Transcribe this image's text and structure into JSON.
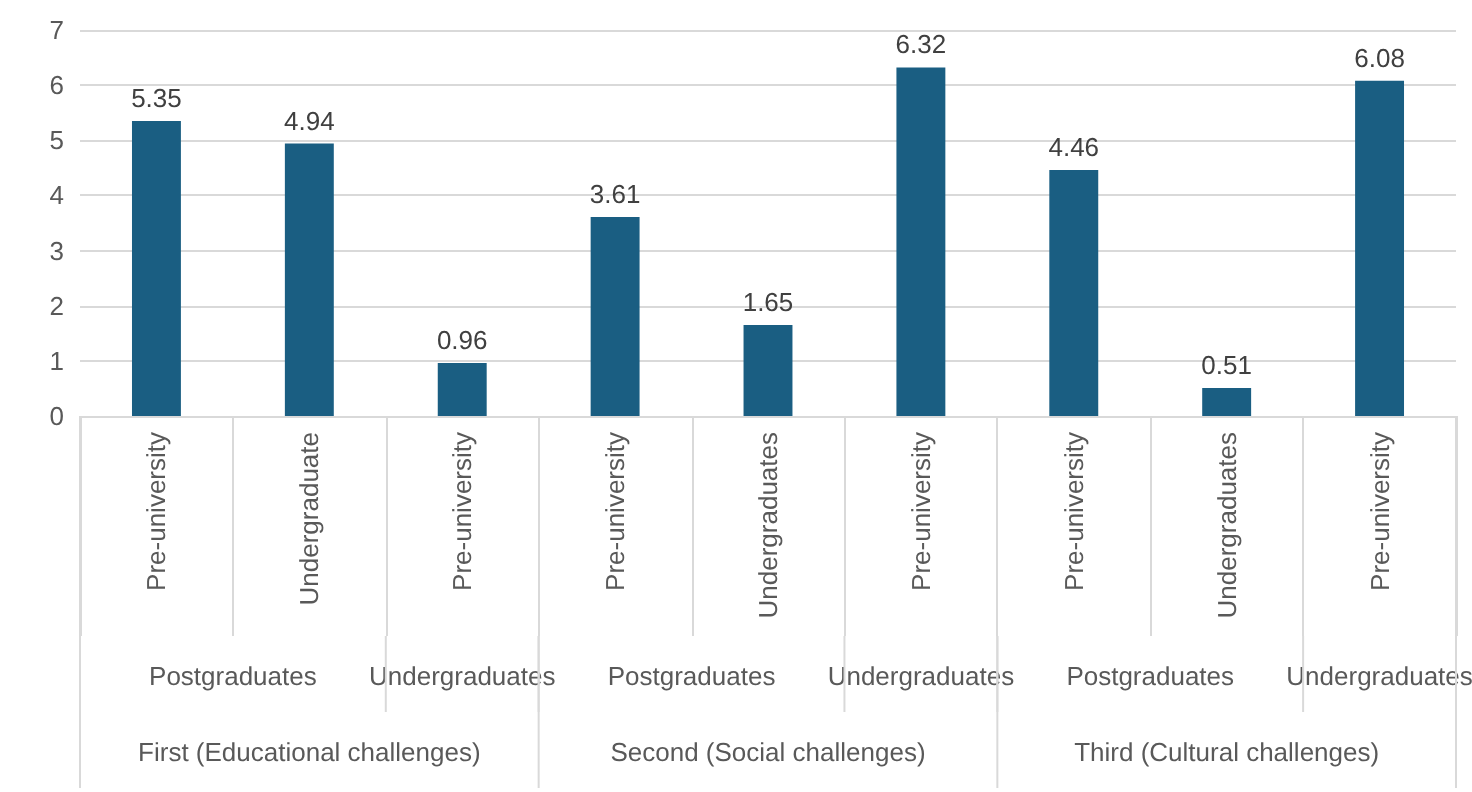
{
  "chart_data": {
    "type": "bar",
    "categories": [
      "Pre-university",
      "Undergraduate",
      "Pre-university",
      "Pre-university",
      "Undergraduates",
      "Pre-university",
      "Pre-university",
      "Undergraduates",
      "Pre-university"
    ],
    "values": [
      5.35,
      4.94,
      0.96,
      3.61,
      1.65,
      6.32,
      4.46,
      0.51,
      6.08
    ],
    "color": "#1a5e82",
    "ylim": [
      0,
      7
    ],
    "yticks": [
      0,
      1,
      2,
      3,
      4,
      5,
      6,
      7
    ],
    "grid": "y",
    "data_labels": true,
    "annotations": [
      "Postgraduates",
      "Undergraduates",
      "Postgraduates",
      "Undergraduates",
      "Postgraduates",
      "Undergraduates",
      "First (Educational challenges)",
      "Second (Social challenges)",
      "Third (Cultural challenges)"
    ]
  }
}
